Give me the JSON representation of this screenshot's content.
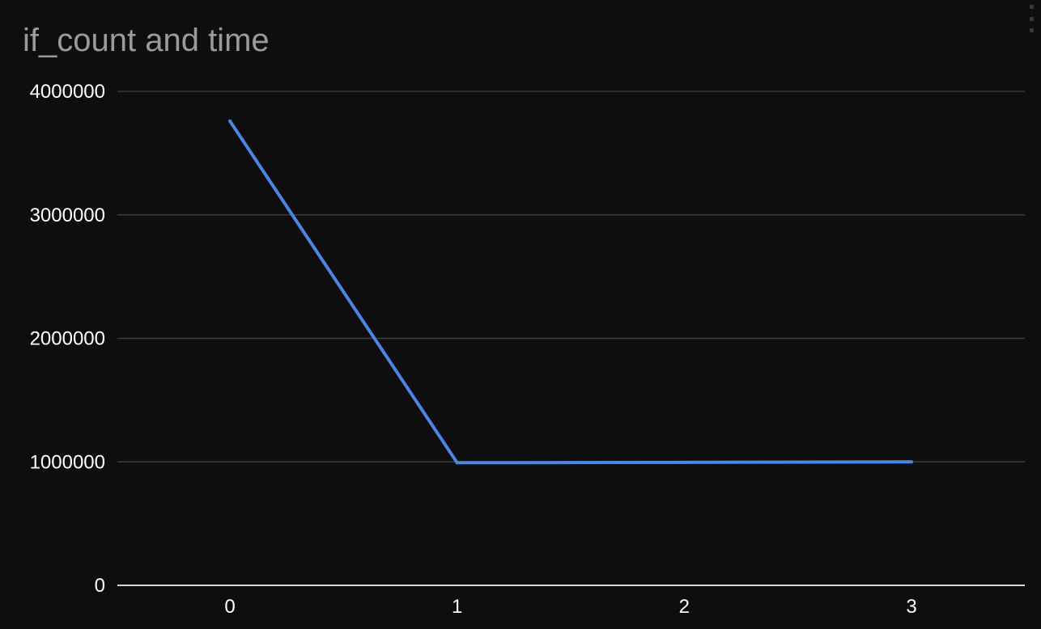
{
  "title": "if_count and time",
  "chart_data": {
    "type": "line",
    "title": "if_count and time",
    "xlabel": "",
    "ylabel": "",
    "categories": [
      "0",
      "1",
      "2",
      "3"
    ],
    "x": [
      0,
      1,
      2,
      3
    ],
    "series": [
      {
        "values": [
          3760000,
          993000,
          996000,
          1000000
        ]
      }
    ],
    "ylim": [
      0,
      4000000
    ],
    "yticks": [
      0,
      1000000,
      2000000,
      3000000,
      4000000
    ],
    "ytick_labels": [
      "0",
      "1000000",
      "2000000",
      "3000000",
      "4000000"
    ],
    "xticks": [
      "0",
      "1",
      "2",
      "3"
    ],
    "grid": true,
    "legend": "none",
    "colors": {
      "background": "#0e0e0f",
      "line": "#4a86e8",
      "grid": "#3c3c3c",
      "axis": "#d9d9d9",
      "title": "#9b9b9b",
      "tick_label": "#ffffff"
    }
  }
}
